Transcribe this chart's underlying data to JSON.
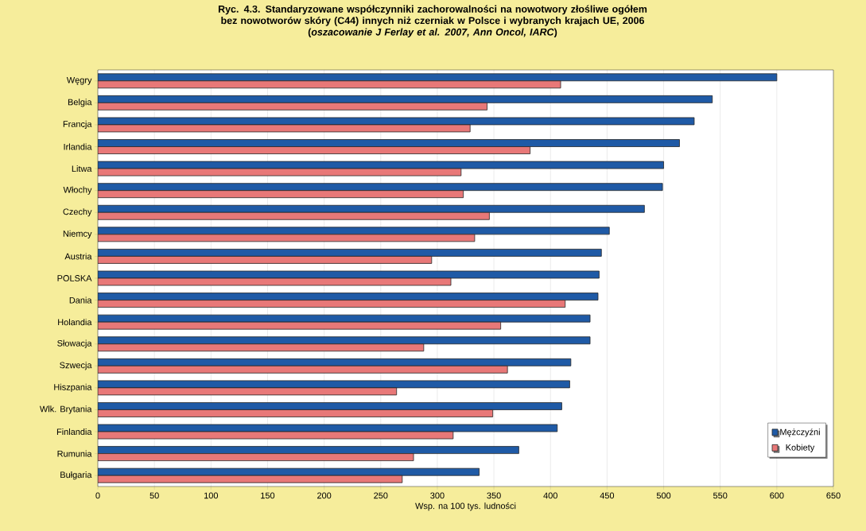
{
  "chart_data": {
    "type": "bar",
    "orientation": "horizontal",
    "title": "Ryc. 4.3. Standaryzowane współczynniki zachorowalności na nowotwory złośliwe ogółem bez nowotworów skóry (C44) innych niż czerniak w Polsce i wybranych krajach UE, 2006",
    "subtitle": "(*oszacowanie J Ferlay et al. 2007, Ann Oncol,  IARC*)",
    "xlabel": "Wsp. na 100 tys. ludności",
    "categories": [
      "Węgry",
      "Belgia",
      "Francja",
      "Irlandia",
      "Litwa",
      "Włochy",
      "Czechy",
      "Niemcy",
      "Austria",
      "POLSKA",
      "Dania",
      "Holandia",
      "Słowacja",
      "Szwecja",
      "Hiszpania",
      "Wlk. Brytania",
      "Finlandia",
      "Rumunia",
      "Bułgaria"
    ],
    "series": [
      {
        "name": "Mężczyźni",
        "color": "#1f5aa6",
        "values": [
          600,
          543,
          527,
          514,
          500,
          499,
          483,
          452,
          445,
          443,
          442,
          435,
          435,
          418,
          417,
          410,
          406,
          372,
          337
        ]
      },
      {
        "name": "Kobiety",
        "color": "#e87878",
        "values": [
          409,
          344,
          329,
          382,
          321,
          323,
          346,
          333,
          295,
          312,
          413,
          356,
          288,
          362,
          264,
          349,
          314,
          279,
          269
        ]
      }
    ],
    "xlim": [
      0,
      650
    ],
    "xticks": [
      0,
      50,
      100,
      150,
      200,
      250,
      300,
      350,
      400,
      450,
      500,
      550,
      600,
      650
    ],
    "grid": "x",
    "legend": "bottom right"
  }
}
